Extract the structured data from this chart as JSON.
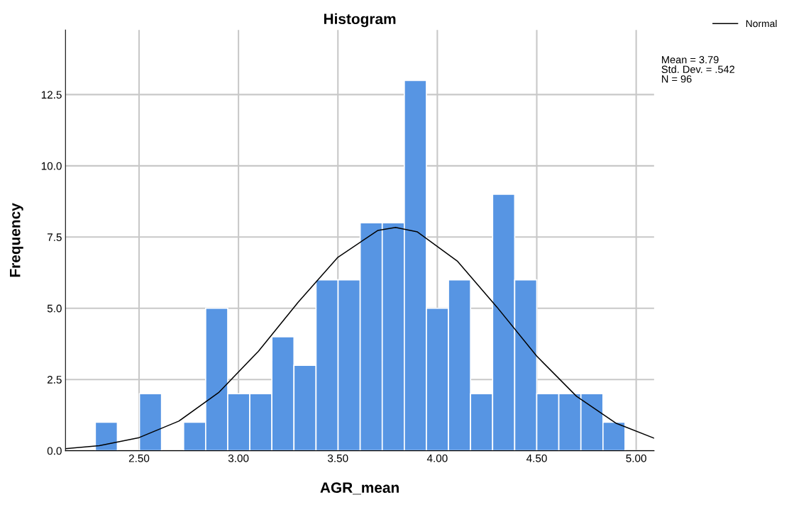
{
  "chart_data": {
    "type": "histogram",
    "title": "Histogram",
    "xlabel": "AGR_mean",
    "ylabel": "Frequency",
    "bins": [
      2.28,
      2.391,
      2.502,
      2.613,
      2.724,
      2.835,
      2.946,
      3.057,
      3.168,
      3.279,
      3.39,
      3.501,
      3.612,
      3.723,
      3.834,
      3.945,
      4.056,
      4.167,
      4.278,
      4.389,
      4.5,
      4.611,
      4.722,
      4.833,
      4.944
    ],
    "series": [
      {
        "color": "#5795e3",
        "values": [
          1,
          0,
          2,
          0,
          1,
          5,
          2,
          2,
          4,
          3,
          6,
          6,
          8,
          8,
          13,
          5,
          6,
          2,
          9,
          6,
          2,
          2,
          2,
          1
        ]
      },
      {
        "type": "line",
        "name": "Normal",
        "color": "#000000",
        "x": [
          2.13,
          2.3,
          2.5,
          2.7,
          2.9,
          3.1,
          3.3,
          3.5,
          3.7,
          3.79,
          3.9,
          4.1,
          4.3,
          4.5,
          4.7,
          4.9,
          5.09
        ],
        "values": [
          0.07,
          0.18,
          0.46,
          1.04,
          2.04,
          3.49,
          5.21,
          6.79,
          7.73,
          7.84,
          7.68,
          6.66,
          5.04,
          3.32,
          1.91,
          0.96,
          0.44
        ]
      }
    ],
    "xlim": [
      2.13,
      5.09
    ],
    "xticks": [
      {
        "value": 2.5,
        "label": "2.50"
      },
      {
        "value": 3.0,
        "label": "3.00"
      },
      {
        "value": 3.5,
        "label": "3.50"
      },
      {
        "value": 4.0,
        "label": "4.00"
      },
      {
        "value": 4.5,
        "label": "4.50"
      },
      {
        "value": 5.0,
        "label": "5.00"
      }
    ],
    "ylim": [
      0,
      14.77
    ],
    "yticks": [
      {
        "value": 0,
        "label": "0.0"
      },
      2.5,
      {
        "value": 5,
        "label": "5.0"
      },
      7.5,
      {
        "value": 10,
        "label": "10.0"
      },
      12.5
    ],
    "grid": true,
    "legend": "top right",
    "annotations": [
      "Mean = 3.79",
      "Std. Dev. = .542",
      "N = 96"
    ]
  }
}
